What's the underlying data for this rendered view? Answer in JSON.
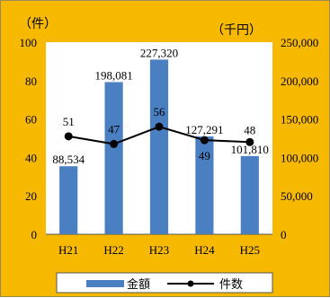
{
  "chart_data": {
    "type": "bar",
    "categories": [
      "H21",
      "H22",
      "H23",
      "H24",
      "H25"
    ],
    "series": [
      {
        "name": "金額",
        "type": "bar",
        "axis": "right",
        "values": [
          88534,
          198081,
          227320,
          127291,
          101810
        ],
        "labels": [
          "88,534",
          "198,081",
          "227,320",
          "127,291",
          "101,810"
        ],
        "color": "#4a7fc1"
      },
      {
        "name": "件数",
        "type": "line",
        "axis": "left",
        "values": [
          51,
          47,
          56,
          49,
          48
        ],
        "labels": [
          "51",
          "47",
          "56",
          "49",
          "48"
        ],
        "color": "#000000"
      }
    ],
    "y_left": {
      "label": "（件）",
      "range": [
        0,
        100
      ],
      "ticks": [
        "0",
        "20",
        "40",
        "60",
        "80",
        "100"
      ]
    },
    "y_right": {
      "label": "（千円）",
      "range": [
        0,
        250000
      ],
      "ticks": [
        "0",
        "50,000",
        "100,000",
        "150,000",
        "200,000",
        "250,000"
      ]
    },
    "background": "#f7b800",
    "plot_background": "#ffffff",
    "legend_position": "bottom"
  }
}
